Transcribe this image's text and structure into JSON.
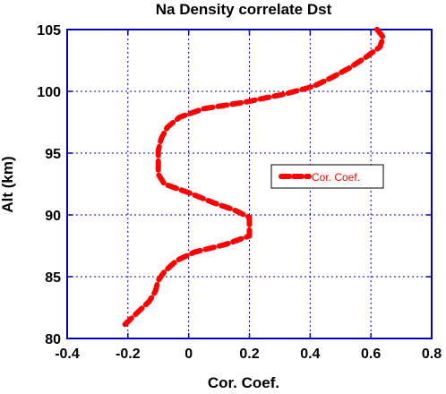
{
  "chart_data": {
    "type": "line",
    "title": "Na Density correlate Dst",
    "xlabel": "Cor. Coef.",
    "ylabel": "Alt (km)",
    "xlim": [
      -0.4,
      0.8
    ],
    "ylim": [
      80,
      105
    ],
    "xticks": [
      -0.4,
      -0.2,
      0,
      0.2,
      0.4,
      0.6,
      0.8
    ],
    "yticks": [
      80,
      85,
      90,
      95,
      100,
      105
    ],
    "xtick_labels": [
      "-0.4",
      "-0.2",
      "0",
      "0.2",
      "0.4",
      "0.6",
      "0.8"
    ],
    "ytick_labels": [
      "80",
      "85",
      "90",
      "95",
      "100",
      "105"
    ],
    "grid": true,
    "legend_position": "center-right",
    "series": [
      {
        "name": "Cor. Coef.",
        "color": "#ff0000",
        "line_style": "dashed",
        "points": [
          [
            0.62,
            105.0
          ],
          [
            0.64,
            104.4
          ],
          [
            0.63,
            103.6
          ],
          [
            0.58,
            102.7
          ],
          [
            0.53,
            101.9
          ],
          [
            0.47,
            101.1
          ],
          [
            0.41,
            100.4
          ],
          [
            0.32,
            99.8
          ],
          [
            0.18,
            99.1
          ],
          [
            0.05,
            98.6
          ],
          [
            -0.03,
            97.9
          ],
          [
            -0.07,
            97.1
          ],
          [
            -0.09,
            96.2
          ],
          [
            -0.1,
            95.2
          ],
          [
            -0.1,
            94.3
          ],
          [
            -0.1,
            93.3
          ],
          [
            -0.08,
            92.5
          ],
          [
            0.0,
            91.8
          ],
          [
            0.08,
            91.0
          ],
          [
            0.15,
            90.4
          ],
          [
            0.2,
            89.8
          ],
          [
            0.2,
            89.1
          ],
          [
            0.2,
            88.3
          ],
          [
            0.12,
            87.6
          ],
          [
            0.02,
            87.0
          ],
          [
            -0.04,
            86.3
          ],
          [
            -0.08,
            85.4
          ],
          [
            -0.1,
            84.7
          ],
          [
            -0.11,
            83.8
          ],
          [
            -0.13,
            83.0
          ],
          [
            -0.16,
            82.3
          ],
          [
            -0.19,
            81.6
          ],
          [
            -0.22,
            80.9
          ]
        ]
      }
    ]
  },
  "colors": {
    "frame": "#0000b4",
    "grid": "#0000b4",
    "series": "#ff0000",
    "background": "#ffffff"
  }
}
